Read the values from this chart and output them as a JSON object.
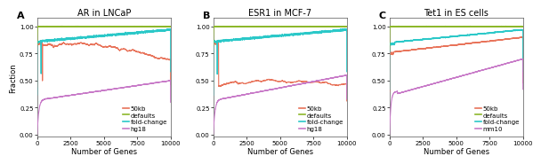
{
  "panels": [
    {
      "label": "A",
      "title": "AR in LNCaP",
      "legend_labels": [
        "50kb",
        "defaults",
        "fold-change",
        "hg18"
      ]
    },
    {
      "label": "B",
      "title": "ESR1 in MCF-7",
      "legend_labels": [
        "50kb",
        "defaults",
        "fold-change",
        "hg18"
      ]
    },
    {
      "label": "C",
      "title": "Tet1 in ES cells",
      "legend_labels": [
        "50kb",
        "defaults",
        "fold-change",
        "mm10"
      ]
    }
  ],
  "colors": {
    "50kb": "#E8735A",
    "defaults": "#8DB82B",
    "fold-change": "#2BC8C8",
    "hg18_mm10": "#C87AC8"
  },
  "xlim": [
    0,
    10000
  ],
  "ylim": [
    -0.02,
    1.08
  ],
  "xlabel": "Number of Genes",
  "ylabel": "Fraction",
  "xticks": [
    0,
    2500,
    5000,
    7500,
    10000
  ],
  "yticks": [
    0.0,
    0.25,
    0.5,
    0.75,
    1.0
  ],
  "background_color": "#ffffff",
  "line_width": 0.8,
  "title_fontsize": 7,
  "label_fontsize": 6,
  "tick_fontsize": 5,
  "legend_fontsize": 5
}
